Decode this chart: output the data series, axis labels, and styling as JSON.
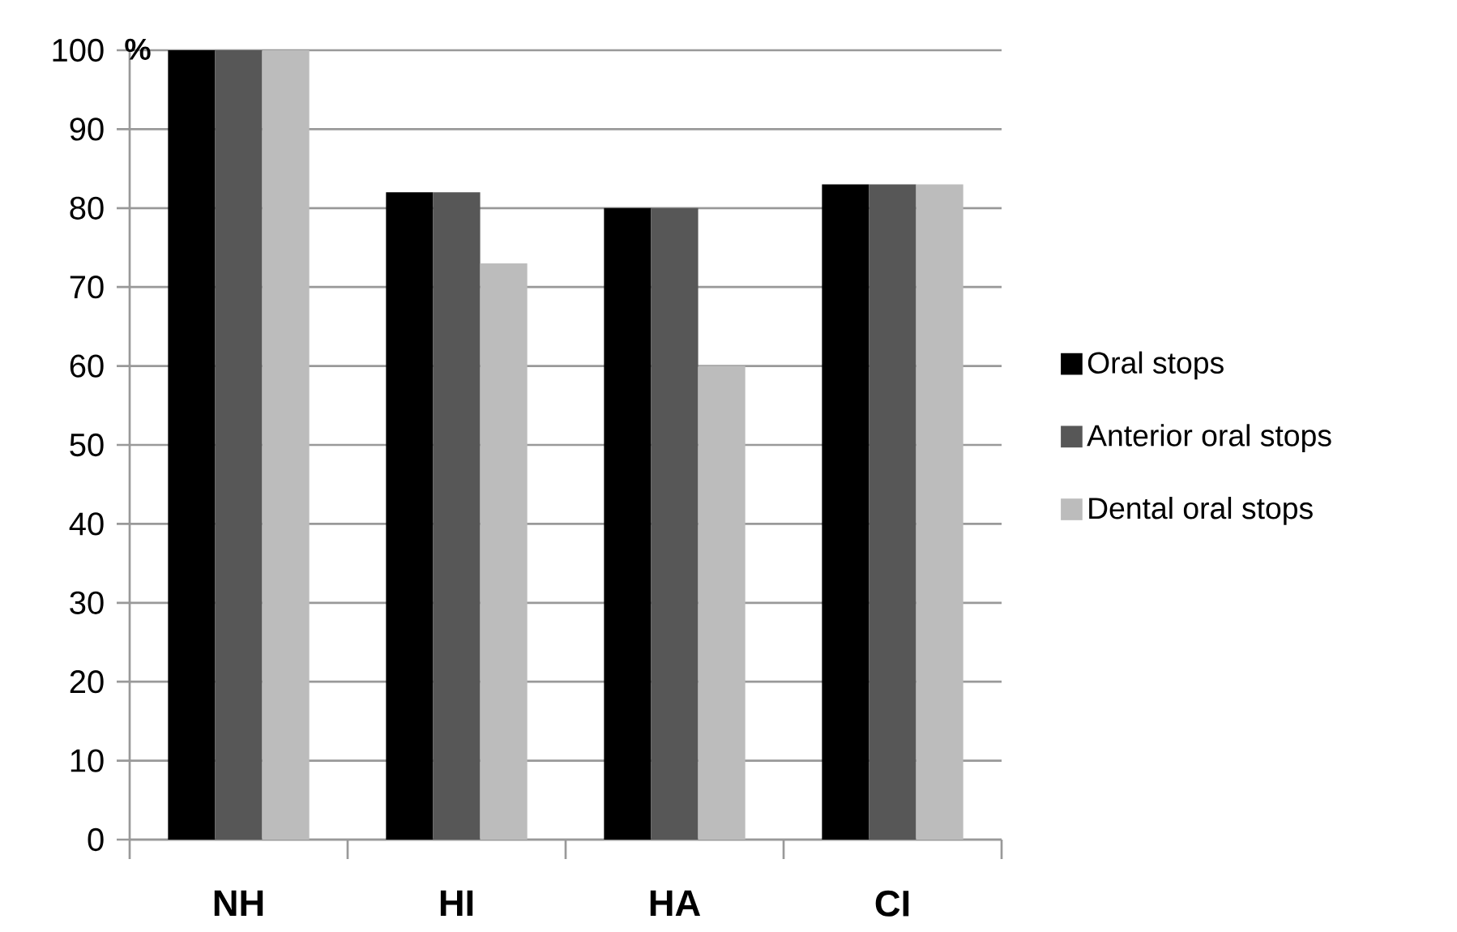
{
  "chart_data": {
    "type": "bar",
    "ylabel": "%",
    "categories": [
      "NH",
      "HI",
      "HA",
      "CI"
    ],
    "series": [
      {
        "name": "Oral stops",
        "color": "#000000",
        "values": [
          100,
          82,
          80,
          83
        ]
      },
      {
        "name": "Anterior oral stops",
        "color": "#575757",
        "values": [
          100,
          82,
          80,
          83
        ]
      },
      {
        "name": "Dental oral stops",
        "color": "#bcbcbc",
        "values": [
          100,
          73,
          60,
          83
        ]
      }
    ],
    "ylim": [
      0,
      100
    ],
    "yticks": [
      0,
      10,
      20,
      30,
      40,
      50,
      60,
      70,
      80,
      90,
      100
    ],
    "grid": "y",
    "legend": "right"
  }
}
